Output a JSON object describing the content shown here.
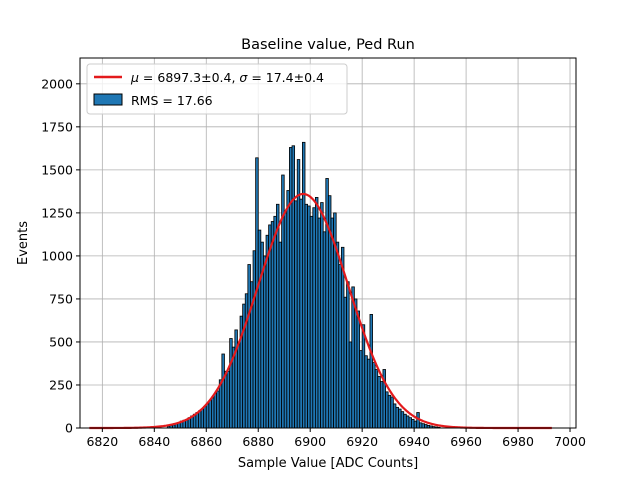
{
  "chart_data": {
    "type": "bar",
    "title": "Baseline value, Ped Run",
    "xlabel": "Sample Value [ADC Counts]",
    "ylabel": "Events",
    "xlim": [
      6811.4,
      7002.3
    ],
    "ylim": [
      0,
      2150
    ],
    "xticks": [
      6820,
      6840,
      6860,
      6880,
      6900,
      6920,
      6940,
      6960,
      6980,
      7000
    ],
    "yticks": [
      0,
      250,
      500,
      750,
      1000,
      1250,
      1500,
      1750,
      2000
    ],
    "grid": true,
    "legend_position": "top-left",
    "legend": [
      {
        "label": "$\\mu=$6897.3±0.4, $\\sigma=$17.4±0.4",
        "kind": "line",
        "color": "#e31a1c"
      },
      {
        "label": "RMS = 17.66",
        "kind": "patch",
        "color": "#1f77b4"
      }
    ],
    "series": [
      {
        "name": "RMS = 17.66",
        "kind": "histogram",
        "bin_width": 1,
        "color": "#1f77b4",
        "edgecolor": "#000000",
        "bins": [
          [
            6845,
            10
          ],
          [
            6846,
            15
          ],
          [
            6847,
            18
          ],
          [
            6848,
            25
          ],
          [
            6849,
            30
          ],
          [
            6850,
            40
          ],
          [
            6851,
            45
          ],
          [
            6852,
            50
          ],
          [
            6853,
            60
          ],
          [
            6854,
            70
          ],
          [
            6855,
            80
          ],
          [
            6856,
            90
          ],
          [
            6857,
            100
          ],
          [
            6858,
            110
          ],
          [
            6859,
            125
          ],
          [
            6860,
            140
          ],
          [
            6861,
            160
          ],
          [
            6862,
            175
          ],
          [
            6863,
            200
          ],
          [
            6864,
            215
          ],
          [
            6865,
            280
          ],
          [
            6866,
            430
          ],
          [
            6867,
            330
          ],
          [
            6868,
            330
          ],
          [
            6869,
            520
          ],
          [
            6870,
            470
          ],
          [
            6871,
            570
          ],
          [
            6872,
            500
          ],
          [
            6873,
            650
          ],
          [
            6874,
            720
          ],
          [
            6875,
            780
          ],
          [
            6876,
            950
          ],
          [
            6877,
            850
          ],
          [
            6878,
            1030
          ],
          [
            6879,
            1570
          ],
          [
            6880,
            1150
          ],
          [
            6881,
            1080
          ],
          [
            6882,
            1000
          ],
          [
            6883,
            1120
          ],
          [
            6884,
            1180
          ],
          [
            6885,
            1200
          ],
          [
            6886,
            1230
          ],
          [
            6887,
            1300
          ],
          [
            6888,
            1080
          ],
          [
            6889,
            1470
          ],
          [
            6890,
            1250
          ],
          [
            6891,
            1380
          ],
          [
            6892,
            1630
          ],
          [
            6893,
            1640
          ],
          [
            6894,
            1320
          ],
          [
            6895,
            1560
          ],
          [
            6896,
            1330
          ],
          [
            6897,
            1660
          ],
          [
            6898,
            1300
          ],
          [
            6899,
            1290
          ],
          [
            6900,
            1230
          ],
          [
            6901,
            1280
          ],
          [
            6902,
            1340
          ],
          [
            6903,
            1220
          ],
          [
            6904,
            1310
          ],
          [
            6905,
            1140
          ],
          [
            6906,
            1450
          ],
          [
            6907,
            1350
          ],
          [
            6908,
            1220
          ],
          [
            6909,
            1250
          ],
          [
            6910,
            1080
          ],
          [
            6911,
            950
          ],
          [
            6912,
            1050
          ],
          [
            6913,
            760
          ],
          [
            6914,
            850
          ],
          [
            6915,
            500
          ],
          [
            6916,
            820
          ],
          [
            6917,
            750
          ],
          [
            6918,
            680
          ],
          [
            6919,
            450
          ],
          [
            6920,
            600
          ],
          [
            6921,
            420
          ],
          [
            6922,
            400
          ],
          [
            6923,
            660
          ],
          [
            6924,
            380
          ],
          [
            6925,
            340
          ],
          [
            6926,
            300
          ],
          [
            6927,
            270
          ],
          [
            6928,
            340
          ],
          [
            6929,
            210
          ],
          [
            6930,
            190
          ],
          [
            6931,
            180
          ],
          [
            6932,
            140
          ],
          [
            6933,
            120
          ],
          [
            6934,
            110
          ],
          [
            6935,
            95
          ],
          [
            6936,
            80
          ],
          [
            6937,
            70
          ],
          [
            6938,
            60
          ],
          [
            6939,
            50
          ],
          [
            6940,
            40
          ],
          [
            6941,
            90
          ],
          [
            6942,
            30
          ],
          [
            6943,
            25
          ],
          [
            6944,
            20
          ],
          [
            6945,
            15
          ],
          [
            6946,
            12
          ],
          [
            6947,
            8
          ],
          [
            6948,
            6
          ],
          [
            6949,
            4
          ]
        ]
      },
      {
        "name": "$\\mu=$6897.3±0.4, $\\sigma=$17.4±0.4",
        "kind": "gaussian-fit",
        "color": "#e31a1c",
        "mu": 6897.3,
        "sigma": 17.4,
        "amplitude": 1360,
        "x_range": [
          6815,
          6993
        ]
      }
    ]
  }
}
